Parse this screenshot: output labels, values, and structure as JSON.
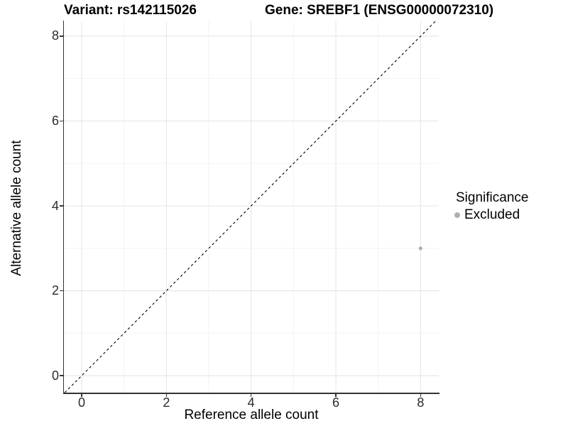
{
  "titles": {
    "variant": "Variant: rs142115026",
    "gene": "Gene: SREBF1 (ENSG00000072310)"
  },
  "legend": {
    "title": "Significance",
    "items": [
      {
        "label": "Excluded",
        "color": "#b0b0b0"
      }
    ]
  },
  "chart_data": {
    "type": "scatter",
    "title": "Variant: rs142115026    Gene: SREBF1 (ENSG00000072310)",
    "xlabel": "Reference allele count",
    "ylabel": "Alternative allele count",
    "xlim": [
      -0.42,
      8.43
    ],
    "ylim": [
      -0.4,
      8.35
    ],
    "x_major_ticks": [
      0,
      2,
      4,
      6,
      8
    ],
    "y_major_ticks": [
      0,
      2,
      4,
      6,
      8
    ],
    "x_minor_ticks": [
      1,
      3,
      5,
      7
    ],
    "y_minor_ticks": [
      1,
      3,
      5,
      7
    ],
    "grid": true,
    "legend_position": "right",
    "series": [
      {
        "name": "Excluded",
        "color": "#b0b0b0",
        "points": [
          {
            "x": 8,
            "y": 3
          }
        ]
      }
    ],
    "reference_line": {
      "type": "identity",
      "style": "dashed",
      "color": "#000000"
    },
    "colors": {
      "grid_major": "#e6e6e6",
      "grid_minor": "#f2f2f2",
      "axis": "#333333",
      "tick_text": "#2b2b2b"
    }
  }
}
